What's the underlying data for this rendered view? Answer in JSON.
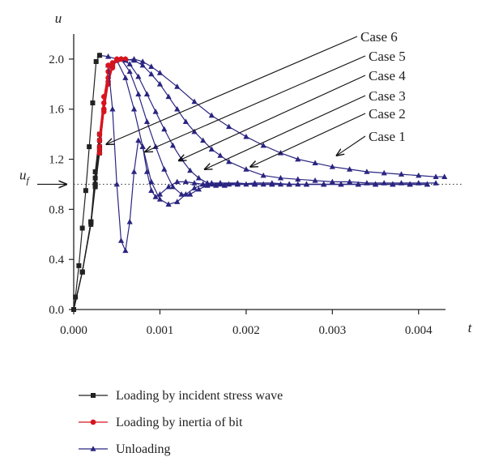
{
  "chart_data": {
    "type": "line",
    "xlabel": "t",
    "ylabel": "u",
    "xlim": [
      0,
      0.0045
    ],
    "ylim": [
      0,
      2.2
    ],
    "xticks": [
      "0.000",
      "0.001",
      "0.002",
      "0.003",
      "0.004"
    ],
    "yticks": [
      "0.0",
      "0.4",
      "0.8",
      "1.2",
      "1.6",
      "2.0"
    ],
    "uf": {
      "label": "u",
      "subscript": "f",
      "value": 1.0
    },
    "colors": {
      "loading_incident": "#222222",
      "loading_inertia": "#d7141e",
      "unloading": "#2a2580"
    },
    "legend": [
      {
        "label": "Loading by incident stress wave",
        "marker": "square",
        "color": "#222222"
      },
      {
        "label": "Loading by inertia of bit",
        "marker": "circle",
        "color": "#d7141e"
      },
      {
        "label": "Unloading",
        "marker": "triangle",
        "color": "#2a2580"
      }
    ],
    "cases": [
      {
        "name": "Case 1",
        "loading": {
          "x": [
            0.0,
            2e-05,
            6e-05,
            0.0001,
            0.00014,
            0.00018,
            0.00022,
            0.00026,
            0.0003
          ],
          "y": [
            0.0,
            0.1,
            0.35,
            0.65,
            0.95,
            1.3,
            1.65,
            1.98,
            2.03
          ]
        },
        "inertia": {
          "x": [],
          "y": []
        },
        "unloading": {
          "x": [
            0.0003,
            0.0004,
            0.0005,
            0.0006,
            0.0007,
            0.0008,
            0.0009,
            0.001,
            0.0012,
            0.0014,
            0.0016,
            0.0018,
            0.002,
            0.0022,
            0.0024,
            0.0026,
            0.0028,
            0.003,
            0.0032,
            0.0034,
            0.0036,
            0.0038,
            0.004,
            0.0042,
            0.0043
          ],
          "y": [
            2.03,
            2.02,
            2.0,
            1.99,
            2.0,
            1.98,
            1.94,
            1.89,
            1.78,
            1.66,
            1.55,
            1.46,
            1.38,
            1.31,
            1.25,
            1.2,
            1.17,
            1.14,
            1.12,
            1.1,
            1.09,
            1.08,
            1.07,
            1.06,
            1.06
          ]
        },
        "arrow_target": {
          "x": 0.00305,
          "y": 1.23
        }
      },
      {
        "name": "Case 2",
        "loading": {
          "x": [
            0.0,
            0.0001,
            0.0002,
            0.00025,
            0.0003
          ],
          "y": [
            0.0,
            0.3,
            0.7,
            1.1,
            1.4
          ]
        },
        "inertia": {
          "x": [
            0.0003,
            0.00035,
            0.0004,
            0.00045,
            0.0005,
            0.00055,
            0.0006
          ],
          "y": [
            1.4,
            1.7,
            1.9,
            1.97,
            2.0,
            2.0,
            2.0
          ]
        },
        "unloading": {
          "x": [
            0.0006,
            0.0007,
            0.0008,
            0.0009,
            0.001,
            0.0011,
            0.0012,
            0.0013,
            0.0014,
            0.0015,
            0.0016,
            0.0017,
            0.0018,
            0.002,
            0.0022,
            0.0024,
            0.0026,
            0.0028,
            0.003,
            0.0032,
            0.0034,
            0.0036,
            0.0038,
            0.004,
            0.0042
          ],
          "y": [
            2.0,
            1.99,
            1.95,
            1.88,
            1.8,
            1.7,
            1.6,
            1.5,
            1.42,
            1.35,
            1.28,
            1.23,
            1.18,
            1.12,
            1.07,
            1.05,
            1.04,
            1.03,
            1.02,
            1.02,
            1.01,
            1.01,
            1.01,
            1.01,
            1.01
          ]
        },
        "arrow_target": {
          "x": 0.00205,
          "y": 1.14
        }
      },
      {
        "name": "Case 3",
        "loading": {
          "x": [
            0.0,
            0.0001,
            0.0002,
            0.00025,
            0.0003
          ],
          "y": [
            0.0,
            0.3,
            0.7,
            1.05,
            1.35
          ]
        },
        "inertia": {
          "x": [
            0.0003,
            0.00035,
            0.0004,
            0.00045,
            0.0005,
            0.00055
          ],
          "y": [
            1.35,
            1.65,
            1.85,
            1.95,
            1.99,
            2.0
          ]
        },
        "unloading": {
          "x": [
            0.00055,
            0.00065,
            0.00075,
            0.00085,
            0.00095,
            0.00105,
            0.00115,
            0.00125,
            0.00135,
            0.00145,
            0.00155,
            0.00165,
            0.00175,
            0.0019,
            0.0021,
            0.0023,
            0.0025,
            0.0027,
            0.0029,
            0.0031,
            0.0033,
            0.0035,
            0.0037,
            0.0039,
            0.0041
          ],
          "y": [
            2.0,
            1.96,
            1.86,
            1.72,
            1.58,
            1.44,
            1.31,
            1.2,
            1.11,
            1.05,
            1.01,
            0.99,
            0.99,
            1.0,
            1.01,
            1.01,
            1.0,
            1.0,
            1.0,
            1.0,
            1.0,
            1.0,
            1.0,
            1.0,
            1.0
          ]
        },
        "arrow_target": {
          "x": 0.00152,
          "y": 1.12
        }
      },
      {
        "name": "Case 4",
        "loading": {
          "x": [
            0.0,
            0.0001,
            0.0002,
            0.00025,
            0.0003
          ],
          "y": [
            0.0,
            0.3,
            0.7,
            1.0,
            1.3
          ]
        },
        "inertia": {
          "x": [
            0.0003,
            0.00035,
            0.0004,
            0.00045,
            0.0005,
            0.00055
          ],
          "y": [
            1.3,
            1.6,
            1.82,
            1.94,
            1.99,
            2.0
          ]
        },
        "unloading": {
          "x": [
            0.00055,
            0.00065,
            0.00075,
            0.00085,
            0.00095,
            0.00105,
            0.00115,
            0.00125,
            0.00135,
            0.00145,
            0.00155,
            0.0017,
            0.0019,
            0.0021,
            0.0023,
            0.0025,
            0.0027,
            0.0029,
            0.0031,
            0.0033,
            0.0035,
            0.0037,
            0.0039,
            0.0041
          ],
          "y": [
            2.0,
            1.9,
            1.72,
            1.5,
            1.3,
            1.12,
            0.98,
            0.92,
            0.92,
            0.96,
            0.99,
            1.01,
            1.01,
            1.0,
            1.0,
            1.0,
            1.0,
            1.0,
            1.0,
            1.0,
            1.0,
            1.0,
            1.0,
            1.0
          ]
        },
        "arrow_target": {
          "x": 0.00122,
          "y": 1.19
        }
      },
      {
        "name": "Case 5",
        "loading": {
          "x": [
            0.0,
            0.0001,
            0.0002,
            0.00025,
            0.0003
          ],
          "y": [
            0.0,
            0.3,
            0.7,
            1.0,
            1.28
          ]
        },
        "inertia": {
          "x": [
            0.0003,
            0.00035,
            0.0004,
            0.00045,
            0.0005
          ],
          "y": [
            1.28,
            1.58,
            1.8,
            1.93,
            1.99
          ]
        },
        "unloading": {
          "x": [
            0.0005,
            0.0006,
            0.0007,
            0.0008,
            0.0009,
            0.001,
            0.0011,
            0.0012,
            0.0013,
            0.0014,
            0.0015,
            0.0016,
            0.0017,
            0.0019,
            0.0021,
            0.0023,
            0.0025,
            0.0027,
            0.0029,
            0.0031,
            0.0033,
            0.0035,
            0.0037,
            0.0039,
            0.0041
          ],
          "y": [
            1.99,
            1.85,
            1.6,
            1.3,
            1.02,
            0.88,
            0.84,
            0.86,
            0.92,
            0.97,
            1.0,
            1.01,
            1.01,
            1.0,
            1.0,
            1.0,
            1.0,
            1.0,
            1.0,
            1.0,
            1.0,
            1.0,
            1.0,
            1.0,
            1.0
          ]
        },
        "arrow_target": {
          "x": 0.00083,
          "y": 1.26
        }
      },
      {
        "name": "Case 6",
        "loading": {
          "x": [
            0.0,
            0.0001,
            0.0002,
            0.00025,
            0.0003
          ],
          "y": [
            0.0,
            0.3,
            0.68,
            0.98,
            1.25
          ]
        },
        "inertia": {
          "x": [
            0.0003,
            0.00035,
            0.0004
          ],
          "y": [
            1.25,
            1.6,
            1.95
          ]
        },
        "unloading": {
          "x": [
            0.0004,
            0.00045,
            0.0005,
            0.00055,
            0.0006,
            0.00065,
            0.0007,
            0.00075,
            0.0008,
            0.00085,
            0.0009,
            0.00095,
            0.001,
            0.0011,
            0.0012,
            0.0013,
            0.0014,
            0.0015,
            0.0016,
            0.0017,
            0.0018,
            0.002,
            0.0022,
            0.0024,
            0.0026
          ],
          "y": [
            1.95,
            1.6,
            1.0,
            0.55,
            0.47,
            0.7,
            1.1,
            1.35,
            1.3,
            1.1,
            0.95,
            0.9,
            0.92,
            0.98,
            1.02,
            1.02,
            1.01,
            1.0,
            1.0,
            1.0,
            1.0,
            1.0,
            1.0,
            1.0,
            1.0
          ]
        },
        "arrow_target": {
          "x": 0.00038,
          "y": 1.32
        }
      }
    ]
  }
}
